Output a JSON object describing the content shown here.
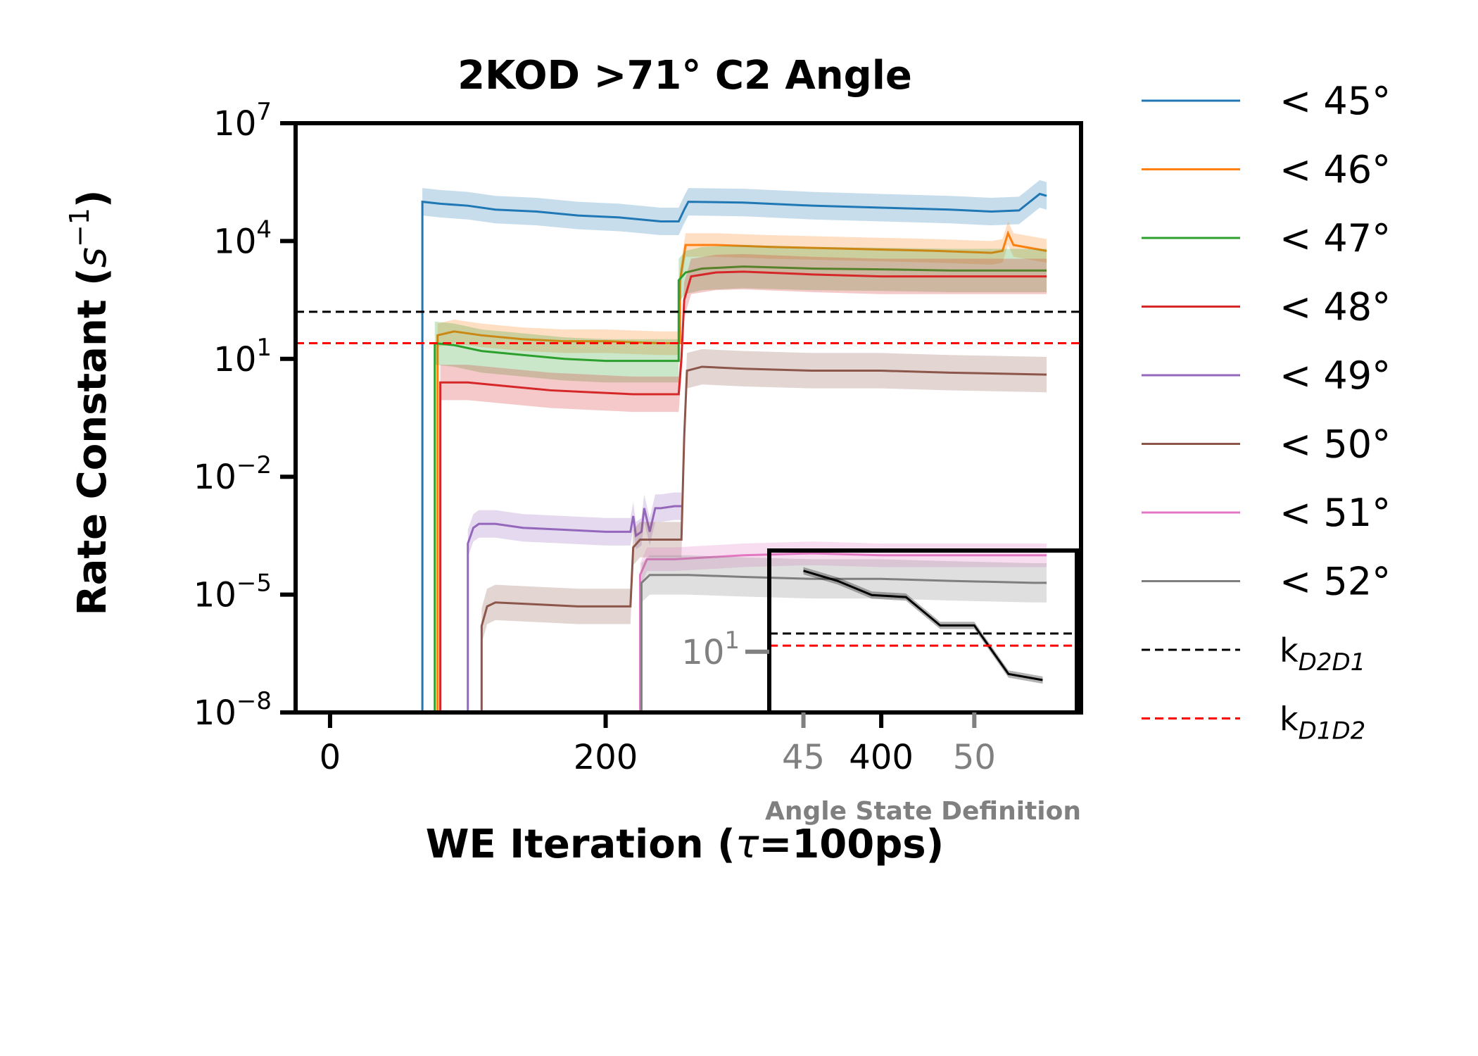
{
  "chart_data": {
    "type": "line",
    "title": "2KOD >71° C2 Angle",
    "xlabel_prefix": "WE Iteration (",
    "xlabel_tau": "τ",
    "xlabel_suffix": "=100ps)",
    "ylabel_text": "Rate Constant (",
    "ylabel_unit": "s",
    "ylabel_exp": "−1",
    "ylabel_close": ")",
    "xlim": [
      -25,
      545
    ],
    "ylim_log10": [
      -8,
      7
    ],
    "scale_y": "log",
    "xticks": [
      0,
      200,
      400
    ],
    "yticks": [
      {
        "exp": 7,
        "label_base": "10",
        "label_exp": "7"
      },
      {
        "exp": 4,
        "label_base": "10",
        "label_exp": "4"
      },
      {
        "exp": 1,
        "label_base": "10",
        "label_exp": "1"
      },
      {
        "exp": -2,
        "label_base": "10",
        "label_exp": "−2"
      },
      {
        "exp": -5,
        "label_base": "10",
        "label_exp": "−5"
      },
      {
        "exp": -8,
        "label_base": "10",
        "label_exp": "−8"
      }
    ],
    "legend_position": "outside-right",
    "series": [
      {
        "name": "< 45°",
        "color": "#1f77b4",
        "band_log10": 0.35,
        "points": [
          [
            67,
            -8.3
          ],
          [
            67,
            5.0
          ],
          [
            80,
            4.95
          ],
          [
            100,
            4.9
          ],
          [
            120,
            4.8
          ],
          [
            150,
            4.75
          ],
          [
            180,
            4.65
          ],
          [
            210,
            4.6
          ],
          [
            240,
            4.5
          ],
          [
            253,
            4.5
          ],
          [
            257,
            4.8
          ],
          [
            260,
            5.0
          ],
          [
            300,
            4.98
          ],
          [
            350,
            4.9
          ],
          [
            400,
            4.85
          ],
          [
            450,
            4.8
          ],
          [
            480,
            4.75
          ],
          [
            500,
            4.78
          ],
          [
            515,
            5.2
          ],
          [
            520,
            5.15
          ]
        ]
      },
      {
        "name": "< 46°",
        "color": "#ff7f0e",
        "band_log10": 0.3,
        "points": [
          [
            78,
            -8.3
          ],
          [
            78,
            1.6
          ],
          [
            90,
            1.7
          ],
          [
            110,
            1.6
          ],
          [
            140,
            1.5
          ],
          [
            170,
            1.45
          ],
          [
            200,
            1.45
          ],
          [
            240,
            1.4
          ],
          [
            254,
            1.4
          ],
          [
            254,
            3.0
          ],
          [
            258,
            3.9
          ],
          [
            280,
            3.9
          ],
          [
            320,
            3.85
          ],
          [
            380,
            3.8
          ],
          [
            440,
            3.75
          ],
          [
            480,
            3.7
          ],
          [
            488,
            3.75
          ],
          [
            492,
            4.2
          ],
          [
            496,
            3.9
          ],
          [
            520,
            3.75
          ]
        ]
      },
      {
        "name": "< 47°",
        "color": "#2ca02c",
        "band_log10": 0.55,
        "points": [
          [
            76,
            -8.3
          ],
          [
            76,
            1.4
          ],
          [
            90,
            1.35
          ],
          [
            110,
            1.2
          ],
          [
            140,
            1.1
          ],
          [
            170,
            1.0
          ],
          [
            200,
            0.95
          ],
          [
            240,
            0.95
          ],
          [
            253,
            0.95
          ],
          [
            253,
            3.0
          ],
          [
            258,
            3.2
          ],
          [
            270,
            3.3
          ],
          [
            300,
            3.35
          ],
          [
            350,
            3.3
          ],
          [
            400,
            3.28
          ],
          [
            450,
            3.25
          ],
          [
            480,
            3.25
          ],
          [
            520,
            3.25
          ]
        ]
      },
      {
        "name": "< 48°",
        "color": "#d62728",
        "band_log10": 0.45,
        "points": [
          [
            80,
            -8.3
          ],
          [
            80,
            0.4
          ],
          [
            100,
            0.4
          ],
          [
            130,
            0.3
          ],
          [
            160,
            0.2
          ],
          [
            190,
            0.15
          ],
          [
            220,
            0.1
          ],
          [
            253,
            0.1
          ],
          [
            255,
            1.0
          ],
          [
            257,
            2.5
          ],
          [
            262,
            3.1
          ],
          [
            280,
            3.2
          ],
          [
            300,
            3.22
          ],
          [
            350,
            3.15
          ],
          [
            400,
            3.1
          ],
          [
            450,
            3.1
          ],
          [
            520,
            3.1
          ]
        ]
      },
      {
        "name": "< 49°",
        "color": "#9467bd",
        "band_log10": 0.35,
        "points": [
          [
            100,
            -8.3
          ],
          [
            100,
            -3.7
          ],
          [
            104,
            -3.3
          ],
          [
            108,
            -3.2
          ],
          [
            120,
            -3.2
          ],
          [
            140,
            -3.3
          ],
          [
            170,
            -3.35
          ],
          [
            200,
            -3.4
          ],
          [
            218,
            -3.4
          ],
          [
            220,
            -3.0
          ],
          [
            222,
            -3.5
          ],
          [
            226,
            -3.4
          ],
          [
            228,
            -2.8
          ],
          [
            232,
            -3.4
          ],
          [
            236,
            -2.8
          ],
          [
            240,
            -2.8
          ],
          [
            250,
            -2.75
          ],
          [
            255,
            -2.75
          ]
        ]
      },
      {
        "name": "< 50°",
        "color": "#8c564b",
        "band_log10": 0.45,
        "points": [
          [
            110,
            -8.3
          ],
          [
            110,
            -5.8
          ],
          [
            114,
            -5.3
          ],
          [
            120,
            -5.2
          ],
          [
            150,
            -5.25
          ],
          [
            180,
            -5.3
          ],
          [
            215,
            -5.3
          ],
          [
            218,
            -5.3
          ],
          [
            220,
            -3.8
          ],
          [
            225,
            -3.6
          ],
          [
            240,
            -3.6
          ],
          [
            255,
            -3.6
          ],
          [
            257,
            -1.0
          ],
          [
            259,
            0.7
          ],
          [
            270,
            0.8
          ],
          [
            300,
            0.75
          ],
          [
            350,
            0.7
          ],
          [
            400,
            0.7
          ],
          [
            450,
            0.65
          ],
          [
            520,
            0.6
          ]
        ]
      },
      {
        "name": "< 51°",
        "color": "#e377c2",
        "band_log10": 0.3,
        "points": [
          [
            225,
            -8.3
          ],
          [
            225,
            -4.5
          ],
          [
            230,
            -4.1
          ],
          [
            250,
            -4.1
          ],
          [
            300,
            -4.0
          ],
          [
            350,
            -3.95
          ],
          [
            400,
            -4.0
          ],
          [
            450,
            -4.0
          ],
          [
            520,
            -4.0
          ]
        ]
      },
      {
        "name": "< 52°",
        "color": "#7f7f7f",
        "band_log10": 0.5,
        "points": [
          [
            226,
            -8.3
          ],
          [
            226,
            -4.7
          ],
          [
            232,
            -4.5
          ],
          [
            260,
            -4.5
          ],
          [
            300,
            -4.55
          ],
          [
            350,
            -4.6
          ],
          [
            400,
            -4.6
          ],
          [
            450,
            -4.65
          ],
          [
            510,
            -4.7
          ],
          [
            520,
            -4.7
          ]
        ]
      }
    ],
    "hlines": [
      {
        "name": "k",
        "sub": "D2D1",
        "color": "#000000",
        "y_log10": 2.2
      },
      {
        "name": "k",
        "sub": "D1D2",
        "color": "#ff0000",
        "y_log10": 1.4
      }
    ],
    "inset": {
      "xlabel": "Angle State Definition",
      "xlim": [
        44,
        53
      ],
      "ylim_log10": [
        -2,
        6
      ],
      "xticks": [
        45,
        50
      ],
      "ytick": {
        "exp": 1,
        "label_base": "10",
        "label_exp": "1"
      },
      "line_color": "#000000",
      "x": [
        45,
        46,
        47,
        48,
        49,
        50,
        51,
        52
      ],
      "y_log10": [
        5.0,
        4.5,
        3.8,
        3.7,
        2.3,
        2.3,
        -0.1,
        -0.4
      ],
      "hlines_log10": [
        {
          "color": "#000000",
          "y_log10": 1.9
        },
        {
          "color": "#ff0000",
          "y_log10": 1.3
        }
      ]
    }
  }
}
